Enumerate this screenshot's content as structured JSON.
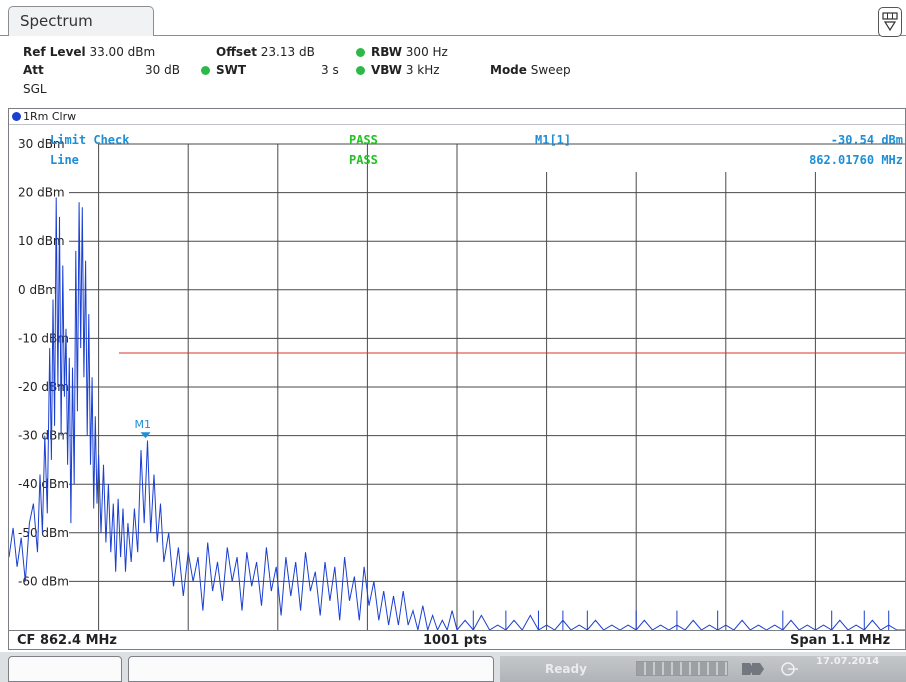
{
  "tab": {
    "title": "Spectrum"
  },
  "header": {
    "ref_level_label": "Ref Level",
    "ref_level_value": "33.00 dBm",
    "offset_label": "Offset",
    "offset_value": "23.13 dB",
    "rbw_label": "RBW",
    "rbw_value": "300 Hz",
    "att_label": "Att",
    "att_value": "30 dB",
    "swt_label": "SWT",
    "swt_value": "3 s",
    "vbw_label": "VBW",
    "vbw_value": "3 kHz",
    "mode_label": "Mode",
    "mode_value": "Sweep",
    "sgl": "SGL"
  },
  "trace": {
    "label": "1Rm Clrw",
    "color": "#1a3fd1"
  },
  "limit_check": {
    "title": "Limit Check",
    "title_result": "PASS",
    "line_label": "Line",
    "line_result": "PASS"
  },
  "marker": {
    "name": "M1[1]",
    "level": "-30.54 dBm",
    "frequency": "862.01760 MHz",
    "label": "M1"
  },
  "footer": {
    "cf": "CF 862.4 MHz",
    "points": "1001 pts",
    "span": "Span 1.1 MHz"
  },
  "status": {
    "state": "Ready",
    "date": "17.07.2014"
  },
  "colors": {
    "trace": "#1a3fd1",
    "limit_line": "#d9342b",
    "pass": "#22c322",
    "marker": "#1e8fd6"
  },
  "chart_data": {
    "type": "line",
    "ylabels": [
      "30 dBm",
      "20 dBm",
      "10 dBm",
      "0 dBm",
      "-10 dBm",
      "-20 dBm",
      "-30 dBm",
      "-40 dBm",
      "-50 dBm",
      "-60 dBm"
    ],
    "ylim": [
      -70,
      30
    ],
    "xlim": [
      861.85,
      862.95
    ],
    "limit_line_dbm": -13,
    "limit_line_start_mhz": 861.985,
    "marker": {
      "x_mhz": 862.0176,
      "y_dbm": -30.54
    },
    "grid": true,
    "series": [
      {
        "points": [
          [
            861.85,
            -55
          ],
          [
            861.855,
            -49
          ],
          [
            861.86,
            -57
          ],
          [
            861.865,
            -51
          ],
          [
            861.87,
            -60
          ],
          [
            861.875,
            -48
          ],
          [
            861.88,
            -44
          ],
          [
            861.885,
            -54
          ],
          [
            861.888,
            -38
          ],
          [
            861.891,
            -50
          ],
          [
            861.894,
            -30
          ],
          [
            861.897,
            -46
          ],
          [
            861.9,
            -12
          ],
          [
            861.902,
            -35
          ],
          [
            861.904,
            -2
          ],
          [
            861.906,
            -28
          ],
          [
            861.908,
            19
          ],
          [
            861.91,
            -20
          ],
          [
            861.912,
            15
          ],
          [
            861.914,
            -30
          ],
          [
            861.916,
            5
          ],
          [
            861.918,
            -22
          ],
          [
            861.92,
            -8
          ],
          [
            861.922,
            -36
          ],
          [
            861.924,
            -14
          ],
          [
            861.926,
            -48
          ],
          [
            861.928,
            -16
          ],
          [
            861.93,
            -40
          ],
          [
            861.932,
            8
          ],
          [
            861.934,
            -25
          ],
          [
            861.936,
            18
          ],
          [
            861.938,
            -12
          ],
          [
            861.94,
            17
          ],
          [
            861.942,
            -18
          ],
          [
            861.944,
            6
          ],
          [
            861.946,
            -30
          ],
          [
            861.948,
            -5
          ],
          [
            861.95,
            -36
          ],
          [
            861.952,
            -18
          ],
          [
            861.954,
            -45
          ],
          [
            861.956,
            -26
          ],
          [
            861.958,
            -44
          ],
          [
            861.96,
            -34
          ],
          [
            861.963,
            -50
          ],
          [
            861.966,
            -36
          ],
          [
            861.969,
            -52
          ],
          [
            861.972,
            -40
          ],
          [
            861.975,
            -54
          ],
          [
            861.978,
            -44
          ],
          [
            861.981,
            -58
          ],
          [
            861.984,
            -43
          ],
          [
            861.987,
            -55
          ],
          [
            861.99,
            -45
          ],
          [
            861.993,
            -58
          ],
          [
            861.996,
            -48
          ],
          [
            862.0,
            -56
          ],
          [
            862.004,
            -45
          ],
          [
            862.008,
            -54
          ],
          [
            862.012,
            -33
          ],
          [
            862.016,
            -48
          ],
          [
            862.02,
            -31
          ],
          [
            862.024,
            -50
          ],
          [
            862.028,
            -38
          ],
          [
            862.032,
            -52
          ],
          [
            862.036,
            -44
          ],
          [
            862.04,
            -56
          ],
          [
            862.046,
            -50
          ],
          [
            862.052,
            -61
          ],
          [
            862.058,
            -53
          ],
          [
            862.064,
            -63
          ],
          [
            862.07,
            -54
          ],
          [
            862.076,
            -60
          ],
          [
            862.082,
            -55
          ],
          [
            862.088,
            -66
          ],
          [
            862.094,
            -52
          ],
          [
            862.1,
            -62
          ],
          [
            862.106,
            -56
          ],
          [
            862.112,
            -64
          ],
          [
            862.118,
            -53
          ],
          [
            862.124,
            -60
          ],
          [
            862.13,
            -55
          ],
          [
            862.136,
            -66
          ],
          [
            862.142,
            -54
          ],
          [
            862.148,
            -61
          ],
          [
            862.154,
            -56
          ],
          [
            862.16,
            -65
          ],
          [
            862.166,
            -53
          ],
          [
            862.172,
            -62
          ],
          [
            862.178,
            -57
          ],
          [
            862.184,
            -67
          ],
          [
            862.19,
            -55
          ],
          [
            862.196,
            -63
          ],
          [
            862.202,
            -56
          ],
          [
            862.208,
            -66
          ],
          [
            862.214,
            -54
          ],
          [
            862.22,
            -62
          ],
          [
            862.226,
            -58
          ],
          [
            862.232,
            -67
          ],
          [
            862.238,
            -56
          ],
          [
            862.244,
            -64
          ],
          [
            862.25,
            -57
          ],
          [
            862.256,
            -68
          ],
          [
            862.262,
            -55
          ],
          [
            862.268,
            -64
          ],
          [
            862.274,
            -59
          ],
          [
            862.28,
            -68
          ],
          [
            862.286,
            -57
          ],
          [
            862.292,
            -65
          ],
          [
            862.298,
            -60
          ],
          [
            862.304,
            -68
          ],
          [
            862.31,
            -62
          ],
          [
            862.316,
            -69
          ],
          [
            862.322,
            -63
          ],
          [
            862.328,
            -69
          ],
          [
            862.334,
            -62
          ],
          [
            862.34,
            -69
          ],
          [
            862.346,
            -66
          ],
          [
            862.352,
            -70
          ],
          [
            862.358,
            -65
          ],
          [
            862.364,
            -70
          ],
          [
            862.37,
            -67
          ],
          [
            862.376,
            -70
          ],
          [
            862.382,
            -68
          ],
          [
            862.388,
            -70
          ],
          [
            862.394,
            -66
          ],
          [
            862.4,
            -70
          ],
          [
            862.41,
            -68
          ],
          [
            862.42,
            -70
          ],
          [
            862.43,
            -67
          ],
          [
            862.44,
            -70
          ],
          [
            862.45,
            -69
          ],
          [
            862.46,
            -70
          ],
          [
            862.47,
            -68
          ],
          [
            862.48,
            -70
          ],
          [
            862.49,
            -67
          ],
          [
            862.5,
            -70
          ],
          [
            862.51,
            -69
          ],
          [
            862.52,
            -70
          ],
          [
            862.53,
            -68
          ],
          [
            862.54,
            -70
          ],
          [
            862.55,
            -69
          ],
          [
            862.56,
            -70
          ],
          [
            862.57,
            -68
          ],
          [
            862.58,
            -70
          ],
          [
            862.59,
            -69
          ],
          [
            862.6,
            -70
          ],
          [
            862.61,
            -69
          ],
          [
            862.62,
            -70
          ],
          [
            862.63,
            -68
          ],
          [
            862.64,
            -70
          ],
          [
            862.65,
            -69
          ],
          [
            862.66,
            -70
          ],
          [
            862.67,
            -69
          ],
          [
            862.68,
            -70
          ],
          [
            862.69,
            -68
          ],
          [
            862.7,
            -70
          ],
          [
            862.71,
            -69
          ],
          [
            862.72,
            -70
          ],
          [
            862.73,
            -69
          ],
          [
            862.74,
            -70
          ],
          [
            862.75,
            -68
          ],
          [
            862.76,
            -70
          ],
          [
            862.77,
            -69
          ],
          [
            862.78,
            -70
          ],
          [
            862.79,
            -69
          ],
          [
            862.8,
            -70
          ],
          [
            862.81,
            -68
          ],
          [
            862.82,
            -70
          ],
          [
            862.83,
            -69
          ],
          [
            862.84,
            -70
          ],
          [
            862.85,
            -69
          ],
          [
            862.86,
            -70
          ],
          [
            862.87,
            -68
          ],
          [
            862.88,
            -70
          ],
          [
            862.89,
            -69
          ],
          [
            862.9,
            -70
          ],
          [
            862.91,
            -68
          ],
          [
            862.92,
            -70
          ],
          [
            862.93,
            -69
          ],
          [
            862.94,
            -70
          ],
          [
            862.95,
            -70
          ]
        ]
      }
    ]
  }
}
